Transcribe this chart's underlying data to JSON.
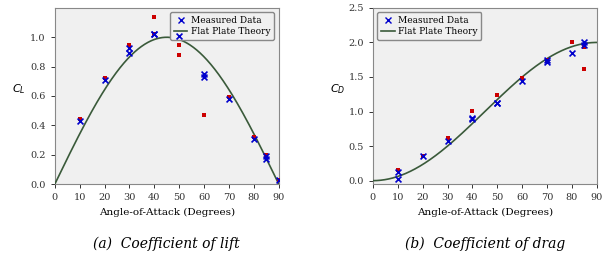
{
  "left": {
    "title": "(a)  Coefficient of lift",
    "ylabel": "C_L",
    "xlabel": "Angle-of-Attack (Degrees)",
    "xlim": [
      0,
      90
    ],
    "ylim": [
      0,
      1.2
    ],
    "yticks": [
      0,
      0.2,
      0.4,
      0.6,
      0.8,
      1.0
    ],
    "xticks": [
      0,
      10,
      20,
      30,
      40,
      50,
      60,
      70,
      80,
      90
    ],
    "measured_blue_x": [
      10,
      20,
      30,
      30,
      40,
      40,
      50,
      60,
      60,
      70,
      80,
      85,
      85,
      90
    ],
    "measured_blue_y": [
      0.43,
      0.71,
      0.89,
      0.93,
      1.02,
      1.02,
      1.01,
      0.75,
      0.73,
      0.58,
      0.31,
      0.17,
      0.19,
      0.03
    ],
    "measured_red_x": [
      10,
      20,
      30,
      40,
      40,
      50,
      50,
      60,
      70,
      80,
      85,
      90
    ],
    "measured_red_y": [
      0.44,
      0.72,
      0.95,
      1.14,
      1.02,
      0.95,
      0.88,
      0.47,
      0.59,
      0.32,
      0.2,
      0.03
    ],
    "legend_labels": [
      "Measured Data",
      "Flat Plate Theory"
    ]
  },
  "right": {
    "title": "(b)  Coefficient of drag",
    "ylabel": "C_D",
    "xlabel": "Angle-of-Attack (Degrees)",
    "xlim": [
      0,
      90
    ],
    "ylim": [
      -0.05,
      2.5
    ],
    "yticks": [
      0,
      0.5,
      1.0,
      1.5,
      2.0,
      2.5
    ],
    "xticks": [
      0,
      10,
      20,
      30,
      40,
      50,
      60,
      70,
      80,
      90
    ],
    "measured_blue_x": [
      10,
      10,
      20,
      30,
      40,
      40,
      50,
      50,
      60,
      70,
      70,
      80,
      85,
      85
    ],
    "measured_blue_y": [
      0.13,
      0.02,
      0.35,
      0.58,
      0.91,
      0.89,
      1.13,
      1.12,
      1.44,
      1.75,
      1.72,
      1.85,
      1.97,
      2.0
    ],
    "measured_red_x": [
      10,
      20,
      30,
      40,
      50,
      60,
      70,
      80,
      85,
      85
    ],
    "measured_red_y": [
      0.15,
      0.36,
      0.61,
      1.01,
      1.24,
      1.48,
      1.75,
      2.01,
      1.93,
      1.62
    ],
    "legend_labels": [
      "Measured Data",
      "Flat Plate Theory"
    ]
  },
  "line_color": "#3a5a3a",
  "blue_marker_color": "#0000cc",
  "red_marker_color": "#cc0000",
  "background_color": "#f0f0f0",
  "caption_fontsize": 10,
  "tick_fontsize": 7,
  "label_fontsize": 7.5,
  "ylabel_fontsize": 8,
  "legend_fontsize": 6.5
}
